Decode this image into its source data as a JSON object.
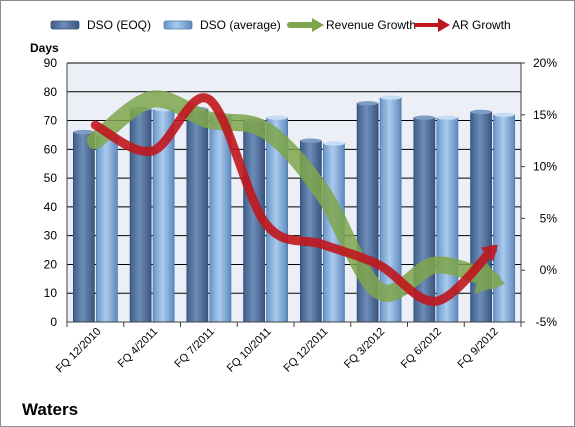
{
  "company": "Waters",
  "colors": {
    "plot_bg": "#ecf0f6",
    "grid": "#000000",
    "dso_eoq_top": "#5a7aa6",
    "dso_eoq_bottom": "#3f5e89",
    "dso_avg_top": "#8fb7e0",
    "dso_avg_bottom": "#5e89bd",
    "revenue_growth": "#7fa64b",
    "ar_growth": "#c0161d"
  },
  "legend": [
    {
      "label": "DSO (EOQ)",
      "kind": "bar-dark"
    },
    {
      "label": "DSO (average)",
      "kind": "bar-light"
    },
    {
      "label": "Revenue Growth",
      "kind": "arrow-green"
    },
    {
      "label": "AR Growth",
      "kind": "arrow-red"
    }
  ],
  "chart_data": {
    "type": "bar",
    "title": "",
    "company_label": "Waters",
    "ylabel": "Days",
    "categories": [
      "FQ 12/2010",
      "FQ 4/2011",
      "FQ 7/2011",
      "FQ 10/2011",
      "FQ 12/2011",
      "FQ 3/2012",
      "FQ 6/2012",
      "FQ 9/2012"
    ],
    "ylim": [
      0,
      90
    ],
    "y_ticks": [
      "0",
      "10",
      "20",
      "30",
      "40",
      "50",
      "60",
      "70",
      "80",
      "90"
    ],
    "y2lim": [
      -5,
      20
    ],
    "y2_ticks": [
      "-5%",
      "0%",
      "5%",
      "10%",
      "15%",
      "20%"
    ],
    "grid": true,
    "legend_position": "top",
    "series": [
      {
        "name": "DSO (EOQ)",
        "axis": "left",
        "type": "bar",
        "values": [
          66,
          74,
          74,
          70,
          63,
          76,
          71,
          73
        ]
      },
      {
        "name": "DSO (average)",
        "axis": "left",
        "type": "bar",
        "values": [
          65,
          74,
          72,
          71,
          62,
          78,
          71,
          72
        ]
      },
      {
        "name": "Revenue Growth",
        "axis": "right",
        "type": "line",
        "values": [
          12.5,
          16.5,
          14.5,
          13.5,
          7.5,
          -2,
          0.5,
          -1
        ]
      },
      {
        "name": "AR Growth",
        "axis": "right",
        "type": "line",
        "values": [
          14,
          11.5,
          16.5,
          4.5,
          2.5,
          0.5,
          -3,
          2
        ]
      }
    ]
  }
}
